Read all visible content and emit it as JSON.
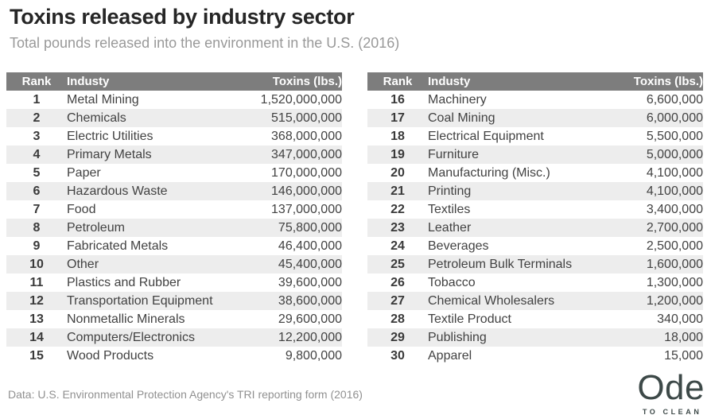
{
  "header": {
    "title": "Toxins released by industry sector",
    "subtitle": "Total pounds released into the environment in the U.S. (2016)"
  },
  "footer": {
    "source": "Data: U.S. Environmental Protection Agency's TRI reporting form (2016)",
    "logo_text": "Ode",
    "logo_tagline": "TO CLEAN"
  },
  "colors": {
    "table_header_bg": "#7d7d7d",
    "row_stripe_bg": "#ededed",
    "title_text": "#262626",
    "muted_text": "#999999",
    "cell_text": "#424242",
    "logo_text": "#3d4948"
  },
  "chart_data": {
    "type": "table",
    "title": "Toxins released by industry sector",
    "subtitle": "Total pounds released into the environment in the U.S. (2016)",
    "source": "Data: U.S. Environmental Protection Agency's TRI reporting form (2016)",
    "columns": [
      "Rank",
      "Industy",
      "Toxins (lbs.)"
    ],
    "layout": "two side-by-side striped tables, ranks 1-15 left, ranks 16-30 right",
    "tables": [
      {
        "rows": [
          {
            "rank": "1",
            "industry": "Metal Mining",
            "toxins": "1,520,000,000"
          },
          {
            "rank": "2",
            "industry": "Chemicals",
            "toxins": "515,000,000"
          },
          {
            "rank": "3",
            "industry": "Electric Utilities",
            "toxins": "368,000,000"
          },
          {
            "rank": "4",
            "industry": "Primary Metals",
            "toxins": "347,000,000"
          },
          {
            "rank": "5",
            "industry": "Paper",
            "toxins": "170,000,000"
          },
          {
            "rank": "6",
            "industry": "Hazardous Waste",
            "toxins": "146,000,000"
          },
          {
            "rank": "7",
            "industry": "Food",
            "toxins": "137,000,000"
          },
          {
            "rank": "8",
            "industry": "Petroleum",
            "toxins": "75,800,000"
          },
          {
            "rank": "9",
            "industry": "Fabricated Metals",
            "toxins": "46,400,000"
          },
          {
            "rank": "10",
            "industry": "Other",
            "toxins": "45,400,000"
          },
          {
            "rank": "11",
            "industry": "Plastics and Rubber",
            "toxins": "39,600,000"
          },
          {
            "rank": "12",
            "industry": "Transportation Equipment",
            "toxins": "38,600,000"
          },
          {
            "rank": "13",
            "industry": "Nonmetallic Minerals",
            "toxins": "29,600,000"
          },
          {
            "rank": "14",
            "industry": "Computers/Electronics",
            "toxins": "12,200,000"
          },
          {
            "rank": "15",
            "industry": "Wood Products",
            "toxins": "9,800,000"
          }
        ]
      },
      {
        "rows": [
          {
            "rank": "16",
            "industry": "Machinery",
            "toxins": "6,600,000"
          },
          {
            "rank": "17",
            "industry": "Coal Mining",
            "toxins": "6,000,000"
          },
          {
            "rank": "18",
            "industry": "Electrical Equipment",
            "toxins": "5,500,000"
          },
          {
            "rank": "19",
            "industry": "Furniture",
            "toxins": "5,000,000"
          },
          {
            "rank": "20",
            "industry": "Manufacturing (Misc.)",
            "toxins": "4,100,000"
          },
          {
            "rank": "21",
            "industry": "Printing",
            "toxins": "4,100,000"
          },
          {
            "rank": "22",
            "industry": "Textiles",
            "toxins": "3,400,000"
          },
          {
            "rank": "23",
            "industry": "Leather",
            "toxins": "2,700,000"
          },
          {
            "rank": "24",
            "industry": "Beverages",
            "toxins": "2,500,000"
          },
          {
            "rank": "25",
            "industry": "Petroleum Bulk Terminals",
            "toxins": "1,600,000"
          },
          {
            "rank": "26",
            "industry": "Tobacco",
            "toxins": "1,300,000"
          },
          {
            "rank": "27",
            "industry": "Chemical Wholesalers",
            "toxins": "1,200,000"
          },
          {
            "rank": "28",
            "industry": "Textile Product",
            "toxins": "340,000"
          },
          {
            "rank": "29",
            "industry": "Publishing",
            "toxins": "18,000"
          },
          {
            "rank": "30",
            "industry": "Apparel",
            "toxins": "15,000"
          }
        ]
      }
    ]
  }
}
